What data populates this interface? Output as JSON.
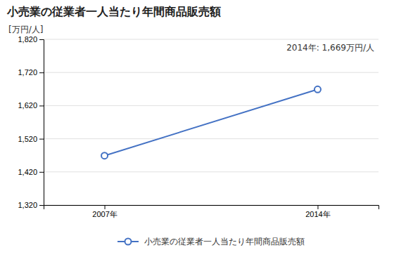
{
  "chart_data": {
    "type": "line",
    "title": "小売業の従業者一人当たり年間商品販売額",
    "ylabel": "[万円/人]",
    "annotation": "2014年: 1,669万円/人",
    "x": [
      2007,
      2014
    ],
    "series": [
      {
        "name": "小売業の従業者一人当たり年間商品販売額",
        "color": "#4472C4",
        "marker": "circle",
        "line_style": "solid",
        "values": [
          1469,
          1669
        ]
      }
    ],
    "xlim": [
      2005,
      2016
    ],
    "xticks": [
      {
        "value": 2007,
        "label": "2007年"
      },
      {
        "value": 2014,
        "label": "2014年"
      }
    ],
    "ylim": [
      1320,
      1820
    ],
    "yticks": [
      {
        "value": 1320,
        "label": "1,320"
      },
      {
        "value": 1420,
        "label": "1,420"
      },
      {
        "value": 1520,
        "label": "1,520"
      },
      {
        "value": 1620,
        "label": "1,620"
      },
      {
        "value": 1720,
        "label": "1,720"
      },
      {
        "value": 1820,
        "label": "1,820"
      }
    ],
    "grid": true,
    "legend": "bottom"
  }
}
